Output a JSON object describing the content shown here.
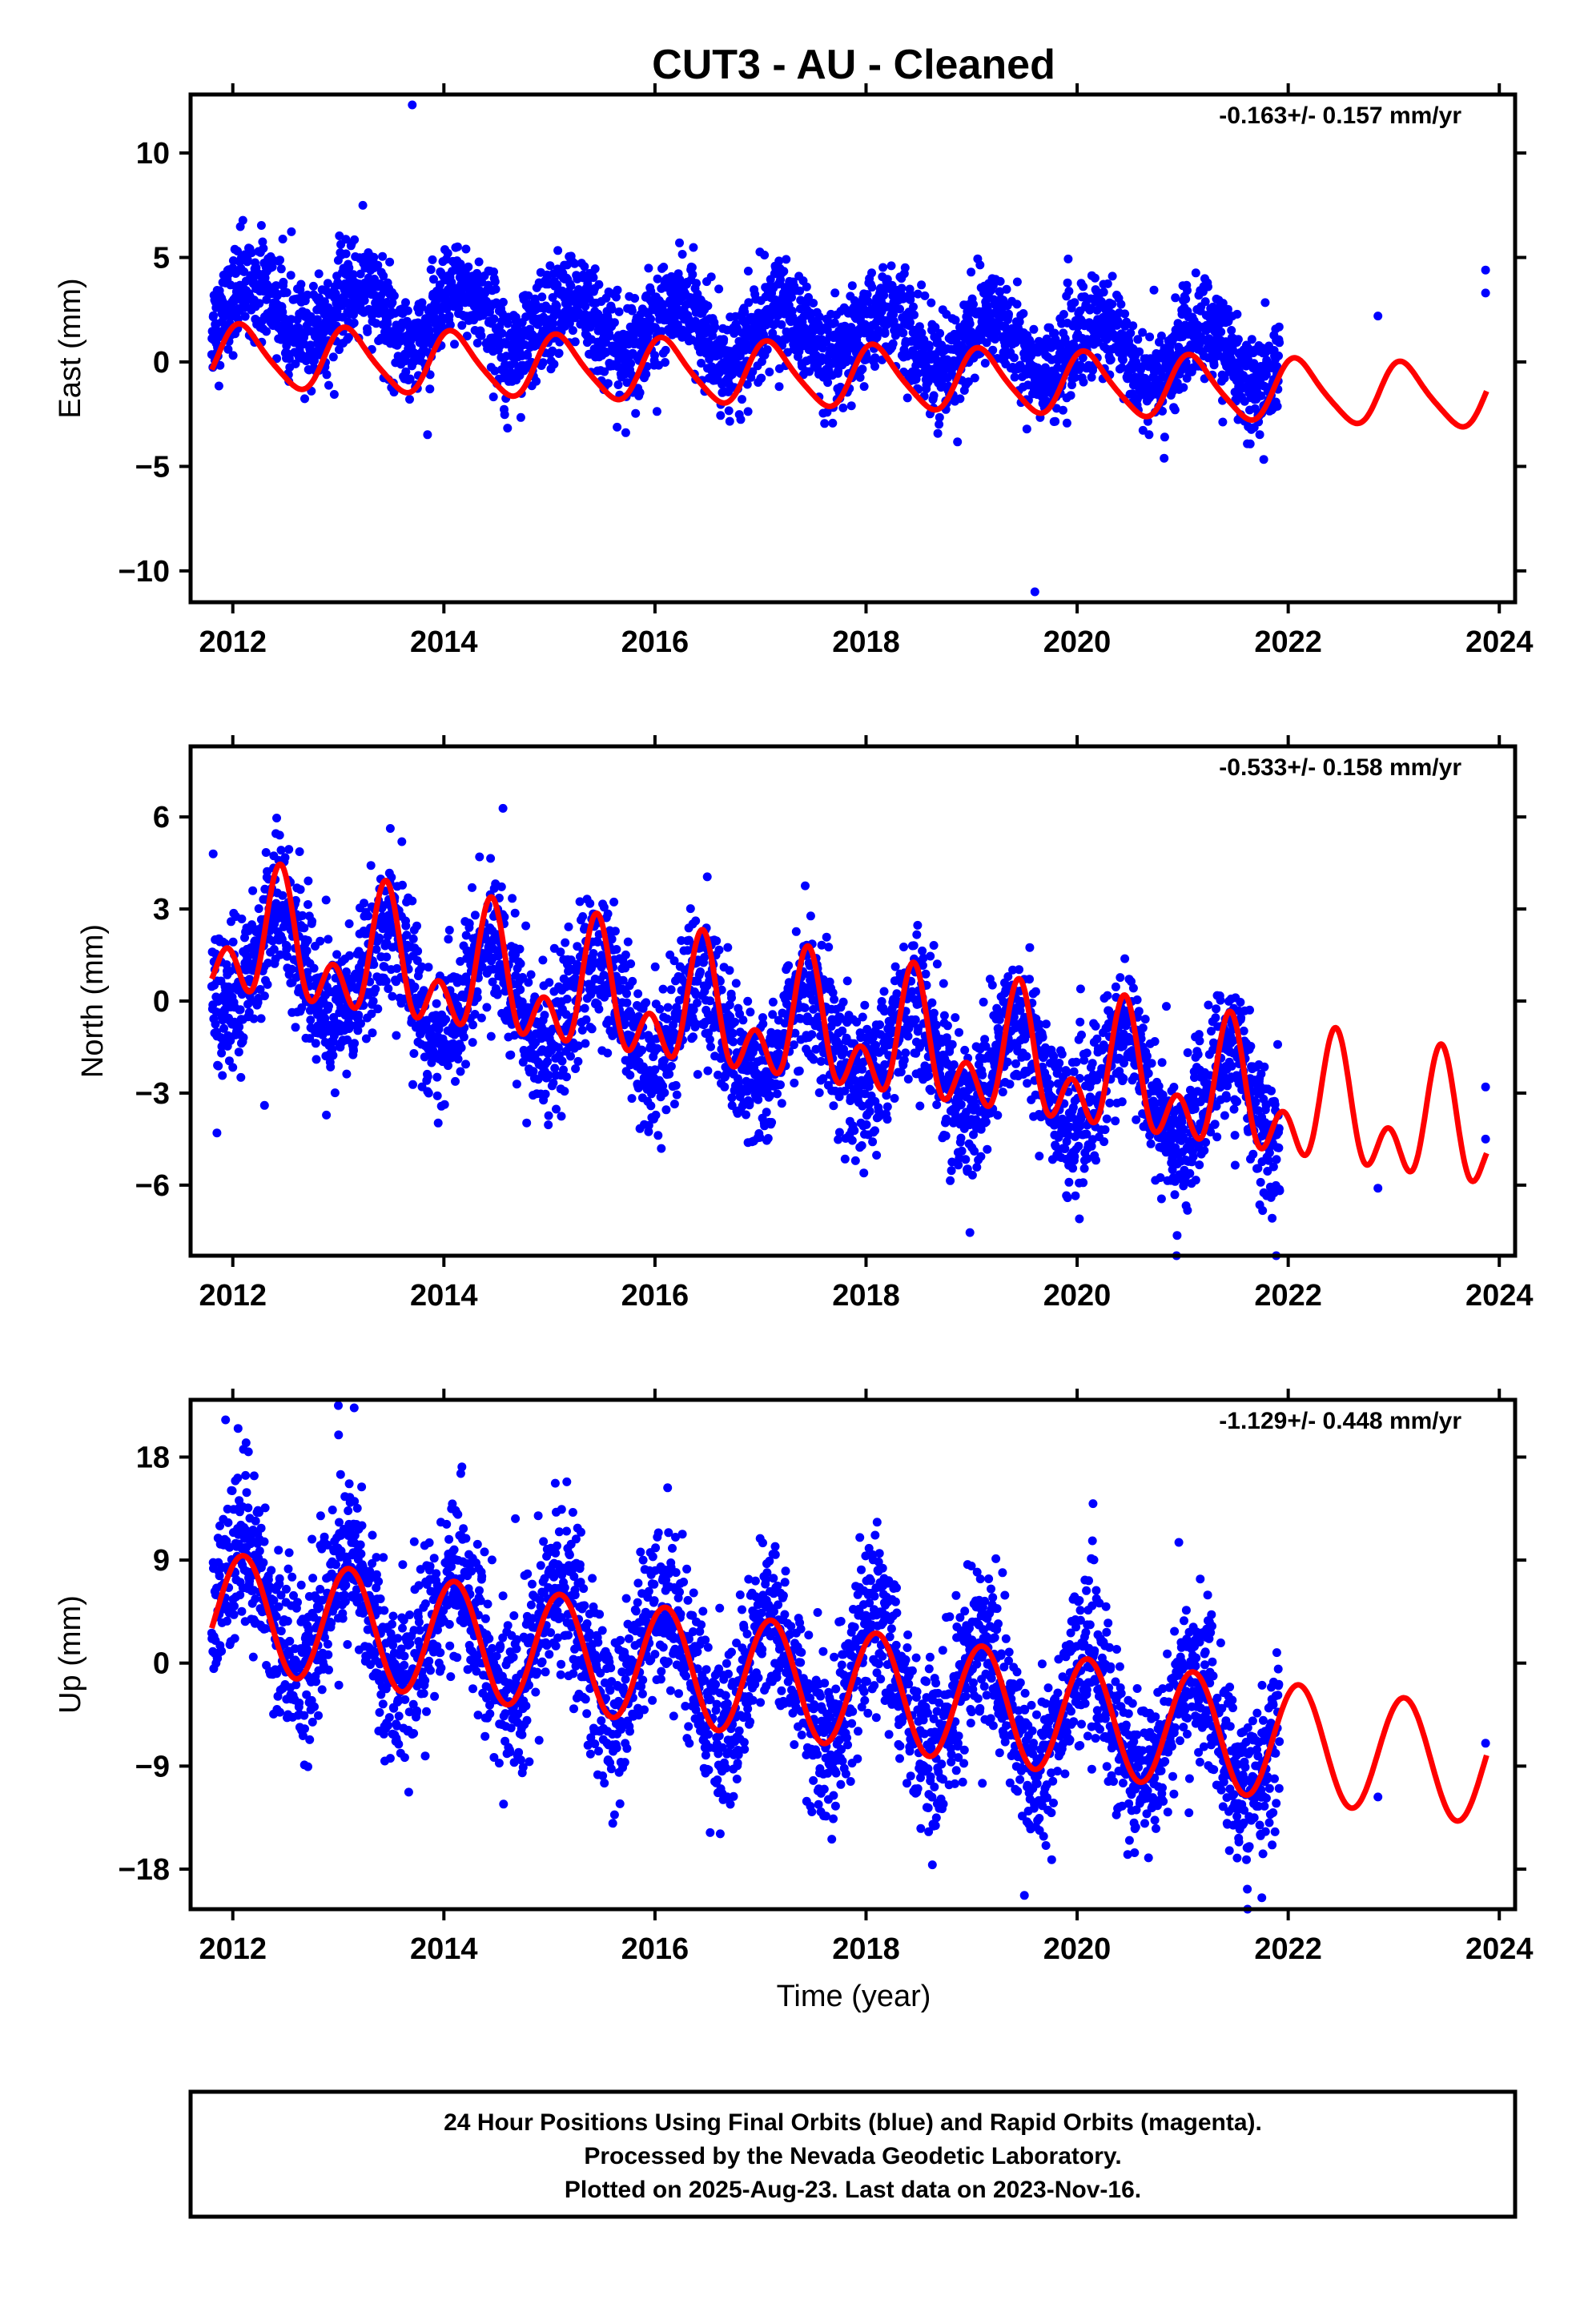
{
  "title": "CUT3  - AU - Cleaned",
  "xlabel": "Time (year)",
  "footer": {
    "line1": "24 Hour Positions Using Final Orbits (blue) and Rapid Orbits (magenta).",
    "line2": "Processed by the Nevada Geodetic Laboratory.",
    "line3": "Plotted on 2025-Aug-23. Last data on 2023-Nov-16."
  },
  "colors": {
    "data": "#0000ff",
    "model": "#ff0000",
    "frame": "#000000"
  },
  "chart_data": [
    {
      "type": "scatter",
      "panel": "east",
      "ylabel": "East (mm)",
      "rate_text": "-0.163+/- 0.157 mm/yr",
      "xlim": [
        2011.6,
        2024.15
      ],
      "ylim": [
        -11.5,
        12.8
      ],
      "xticks": [
        2012,
        2014,
        2016,
        2018,
        2020,
        2022,
        2024
      ],
      "yticks": [
        -10,
        -5,
        0,
        5,
        10
      ],
      "ytick_labels": [
        "−10",
        "−5",
        "0",
        "5",
        "10"
      ],
      "model": {
        "offset": 0.25,
        "offset_t0": 2012.0,
        "trend": -0.163,
        "annual_amp": 1.45,
        "annual_peak": 2012.1,
        "semiannual_amp": 0.25,
        "semiannual_peak": 2012.0,
        "end": 2023.88
      },
      "data_cloud": {
        "start": 2011.8,
        "end": 2021.92,
        "base": 2.6,
        "base_t0": 2012.0,
        "trend": -0.25,
        "annual_amp": 1.3,
        "annual_peak": 2012.2,
        "scatter_sd": 1.2
      },
      "extra_points": [
        [
          2013.7,
          12.3
        ],
        [
          2019.6,
          -11.0
        ],
        [
          2022.85,
          2.2
        ],
        [
          2023.87,
          4.4
        ],
        [
          2023.87,
          3.3
        ]
      ]
    },
    {
      "type": "scatter",
      "panel": "north",
      "ylabel": "North (mm)",
      "rate_text": "-0.533+/- 0.158 mm/yr",
      "xlim": [
        2011.6,
        2024.15
      ],
      "ylim": [
        -8.3,
        8.3
      ],
      "xticks": [
        2012,
        2014,
        2016,
        2018,
        2020,
        2022,
        2024
      ],
      "yticks": [
        -6,
        -3,
        0,
        3,
        6
      ],
      "ytick_labels": [
        "−6",
        "−3",
        "0",
        "3",
        "6"
      ],
      "model": {
        "offset": 1.9,
        "offset_t0": 2012.0,
        "trend": -0.533,
        "annual_amp": 1.5,
        "annual_peak": 2012.45,
        "semiannual_amp": 1.3,
        "semiannual_peak": 2012.45,
        "end": 2023.88
      },
      "data_cloud": {
        "start": 2011.8,
        "end": 2021.92,
        "base": 1.4,
        "base_t0": 2012.0,
        "trend": -0.5,
        "annual_amp": 1.6,
        "annual_peak": 2012.45,
        "scatter_sd": 1.15
      },
      "extra_points": [
        [
          2011.85,
          -4.3
        ],
        [
          2012.3,
          -3.4
        ],
        [
          2022.85,
          -6.1
        ],
        [
          2023.87,
          -2.8
        ],
        [
          2023.87,
          -4.5
        ]
      ]
    },
    {
      "type": "scatter",
      "panel": "up",
      "ylabel": "Up (mm)",
      "rate_text": "-1.129+/- 0.448 mm/yr",
      "xlim": [
        2011.6,
        2024.15
      ],
      "ylim": [
        -21.5,
        23.0
      ],
      "xticks": [
        2012,
        2014,
        2016,
        2018,
        2020,
        2022,
        2024
      ],
      "yticks": [
        -18,
        -9,
        0,
        9,
        18
      ],
      "ytick_labels": [
        "−18",
        "−9",
        "0",
        "9",
        "18"
      ],
      "model": {
        "offset": 4.4,
        "offset_t0": 2012.0,
        "trend": -1.129,
        "annual_amp": 5.1,
        "annual_peak": 2012.1,
        "semiannual_amp": 0.0,
        "semiannual_peak": 2012.0,
        "end": 2023.88
      },
      "data_cloud": {
        "start": 2011.8,
        "end": 2021.92,
        "base": 5.0,
        "base_t0": 2012.0,
        "trend": -1.2,
        "annual_amp": 5.2,
        "annual_peak": 2012.1,
        "scatter_sd": 3.6
      },
      "extra_points": [
        [
          2012.05,
          20.5
        ],
        [
          2013.0,
          22.5
        ],
        [
          2013.15,
          22.3
        ],
        [
          2015.6,
          -14.0
        ],
        [
          2019.5,
          -20.3
        ],
        [
          2021.75,
          -20.5
        ],
        [
          2022.85,
          -11.7
        ],
        [
          2023.87,
          -7.0
        ]
      ]
    }
  ]
}
